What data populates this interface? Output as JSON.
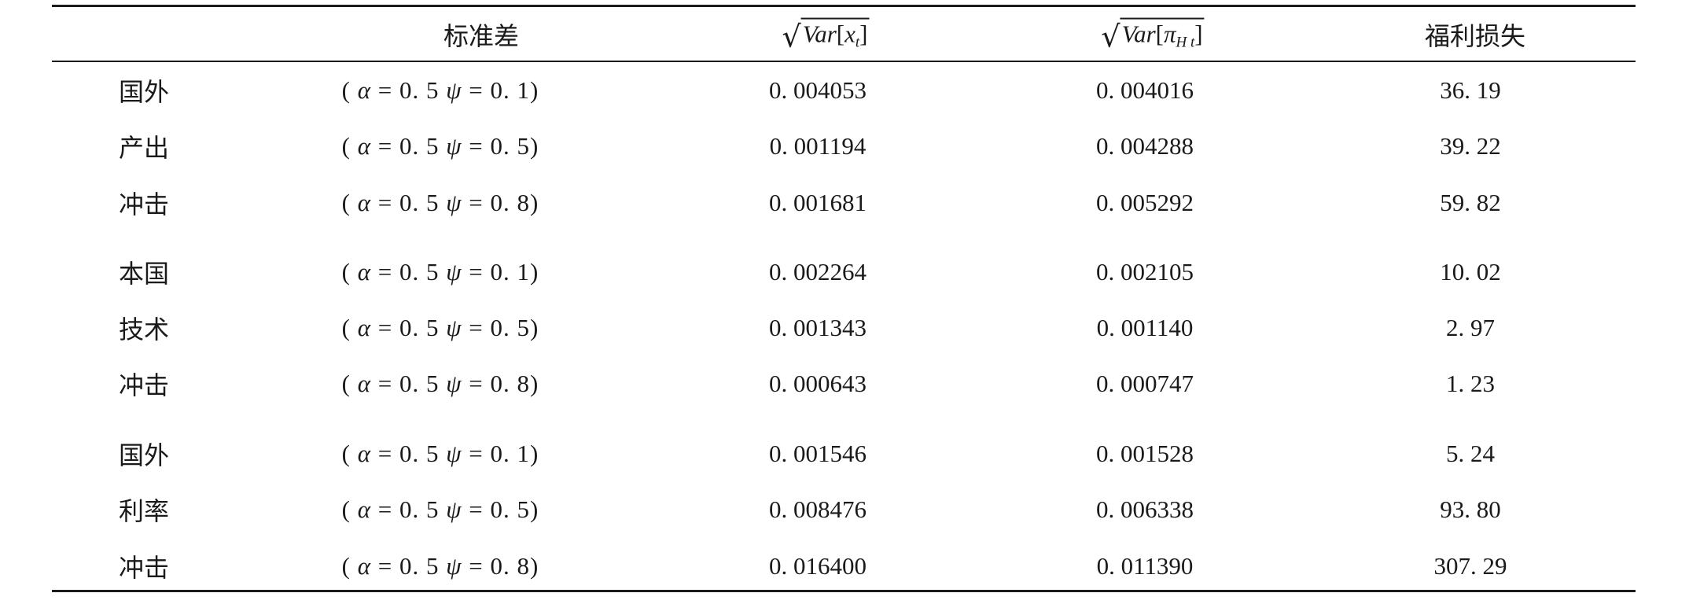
{
  "header": {
    "col_param": "标准差",
    "col_var_x": {
      "func": "Var",
      "arg": "x",
      "sub": "t"
    },
    "col_var_pi": {
      "func": "Var",
      "arg": "π",
      "sub": "H t"
    },
    "col_welfare": "福利损失"
  },
  "groups": [
    {
      "rows": [
        {
          "label": "国外",
          "alpha": "0. 5",
          "psi": "0. 1",
          "var_x": "0. 004053",
          "var_pi": "0. 004016",
          "loss": "36. 19"
        },
        {
          "label": "产出",
          "alpha": "0. 5",
          "psi": "0. 5",
          "var_x": "0. 001194",
          "var_pi": "0. 004288",
          "loss": "39. 22"
        },
        {
          "label": "冲击",
          "alpha": "0. 5",
          "psi": "0. 8",
          "var_x": "0. 001681",
          "var_pi": "0. 005292",
          "loss": "59. 82"
        }
      ]
    },
    {
      "rows": [
        {
          "label": "本国",
          "alpha": "0. 5",
          "psi": "0. 1",
          "var_x": "0. 002264",
          "var_pi": "0. 002105",
          "loss": "10. 02"
        },
        {
          "label": "技术",
          "alpha": "0. 5",
          "psi": "0. 5",
          "var_x": "0. 001343",
          "var_pi": "0. 001140",
          "loss": "2. 97"
        },
        {
          "label": "冲击",
          "alpha": "0. 5",
          "psi": "0. 8",
          "var_x": "0. 000643",
          "var_pi": "0. 000747",
          "loss": "1. 23"
        }
      ]
    },
    {
      "rows": [
        {
          "label": "国外",
          "alpha": "0. 5",
          "psi": "0. 1",
          "var_x": "0. 001546",
          "var_pi": "0. 001528",
          "loss": "5. 24"
        },
        {
          "label": "利率",
          "alpha": "0. 5",
          "psi": "0. 5",
          "var_x": "0. 008476",
          "var_pi": "0. 006338",
          "loss": "93. 80"
        },
        {
          "label": "冲击",
          "alpha": "0. 5",
          "psi": "0. 8",
          "var_x": "0. 016400",
          "var_pi": "0. 011390",
          "loss": "307. 29"
        }
      ]
    }
  ]
}
